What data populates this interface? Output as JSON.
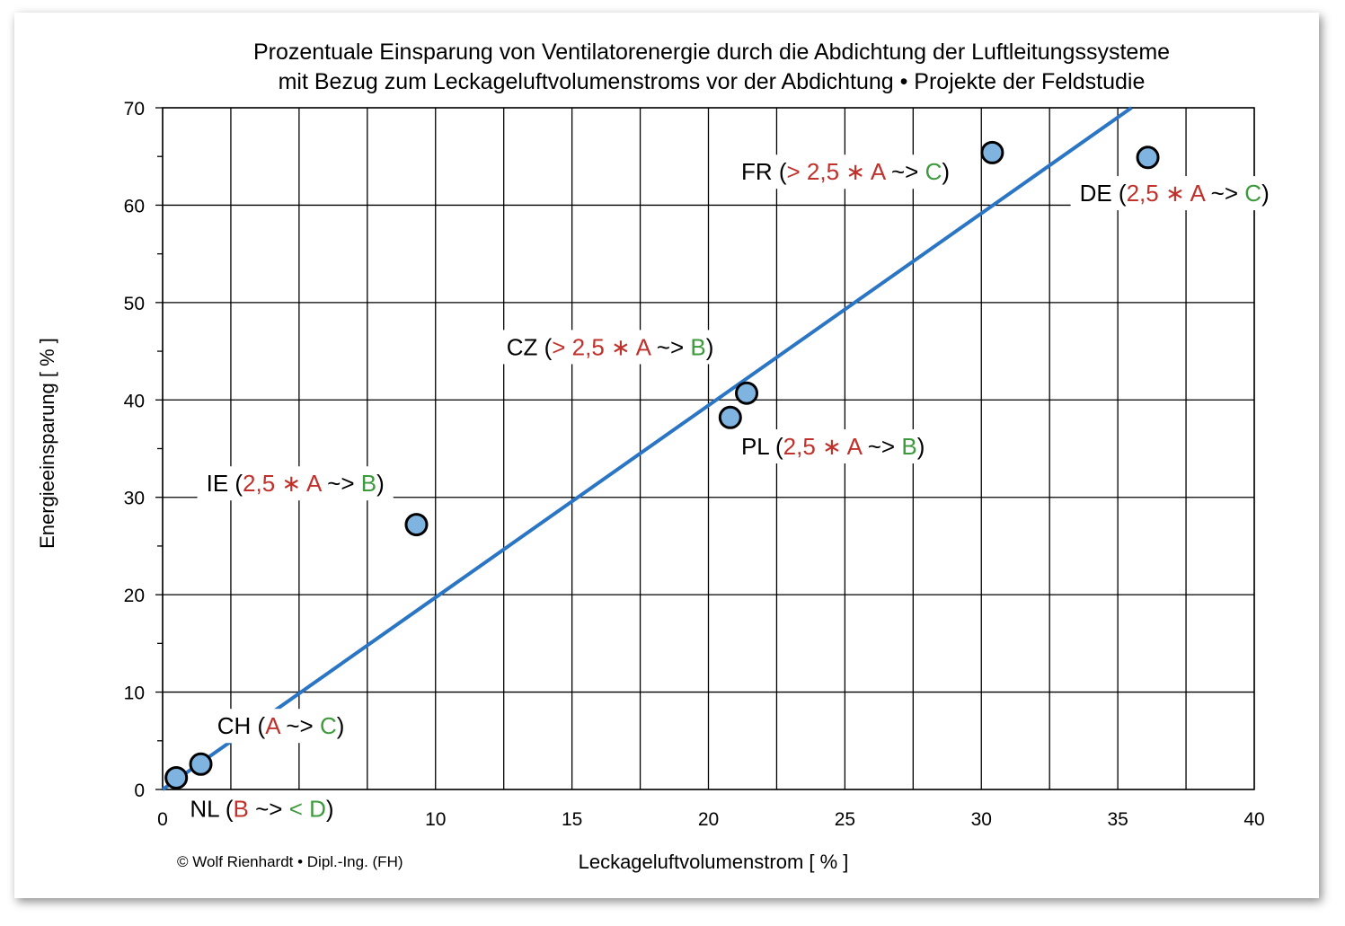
{
  "chart_data": {
    "type": "scatter",
    "title_lines": [
      "Prozentuale Einsparung von Ventilatorenergie durch die Abdichtung der Luftleitungssysteme",
      "mit Bezug zum Leckageluftvolumenstroms vor der Abdichtung • Projekte der Feldstudie"
    ],
    "xlabel": "Leckageluftvolumenstrom [ % ]",
    "ylabel": "Energieeinsparung [ % ]",
    "xlim": [
      0,
      40
    ],
    "ylim": [
      0,
      70
    ],
    "x_ticks": [
      0,
      5,
      10,
      15,
      20,
      25,
      30,
      35,
      40
    ],
    "y_ticks": [
      0,
      10,
      20,
      30,
      40,
      50,
      60,
      70
    ],
    "x_major_grid_step": 5,
    "x_minor_grid_step": 2.5,
    "y_major_grid_step": 10,
    "grid": true,
    "copyright": "© Wolf Rienhardt • Dipl.-Ing. (FH)",
    "colors": {
      "point_fill": "#7fb3e0",
      "point_stroke": "#000000",
      "trendline": "#2a75c4",
      "red_text": "#c0312b",
      "green_text": "#3c9a3c",
      "black_text": "#000000"
    },
    "trendline": {
      "from": [
        0,
        0
      ],
      "to": [
        35.5,
        70
      ]
    },
    "points": [
      {
        "x": 0.5,
        "y": 1.2
      },
      {
        "x": 1.4,
        "y": 2.6
      },
      {
        "x": 9.3,
        "y": 27.2
      },
      {
        "x": 20.8,
        "y": 38.2
      },
      {
        "x": 21.4,
        "y": 40.7
      },
      {
        "x": 30.4,
        "y": 65.4
      },
      {
        "x": 36.1,
        "y": 64.9
      }
    ],
    "annotations": [
      {
        "id": "NL",
        "x": 1.0,
        "y": -2.8,
        "parts": [
          {
            "t": "NL (",
            "c": "black_text"
          },
          {
            "t": "B",
            "c": "red_text"
          },
          {
            "t": " ~> ",
            "c": "black_text"
          },
          {
            "t": "< D",
            "c": "green_text"
          },
          {
            "t": ")",
            "c": "black_text"
          }
        ]
      },
      {
        "id": "CH",
        "x": 2.0,
        "y": 5.7,
        "parts": [
          {
            "t": "CH (",
            "c": "black_text"
          },
          {
            "t": "A",
            "c": "red_text"
          },
          {
            "t": " ~> ",
            "c": "black_text"
          },
          {
            "t": "C",
            "c": "green_text"
          },
          {
            "t": ")",
            "c": "black_text"
          }
        ]
      },
      {
        "id": "IE",
        "x": 1.6,
        "y": 30.6,
        "parts": [
          {
            "t": "IE (",
            "c": "black_text"
          },
          {
            "t": "2,5 ∗ A",
            "c": "red_text"
          },
          {
            "t": " ~> ",
            "c": "black_text"
          },
          {
            "t": "B",
            "c": "green_text"
          },
          {
            "t": ")",
            "c": "black_text"
          }
        ]
      },
      {
        "id": "CZ",
        "x": 12.6,
        "y": 44.6,
        "parts": [
          {
            "t": "CZ (",
            "c": "black_text"
          },
          {
            "t": "> 2,5 ∗ A",
            "c": "red_text"
          },
          {
            "t": " ~> ",
            "c": "black_text"
          },
          {
            "t": "B",
            "c": "green_text"
          },
          {
            "t": ")",
            "c": "black_text"
          }
        ]
      },
      {
        "id": "PL",
        "x": 21.2,
        "y": 34.4,
        "parts": [
          {
            "t": "PL (",
            "c": "black_text"
          },
          {
            "t": "2,5 ∗ A",
            "c": "red_text"
          },
          {
            "t": " ~> ",
            "c": "black_text"
          },
          {
            "t": "B",
            "c": "green_text"
          },
          {
            "t": ")",
            "c": "black_text"
          }
        ]
      },
      {
        "id": "FR",
        "x": 21.2,
        "y": 62.6,
        "parts": [
          {
            "t": "FR (",
            "c": "black_text"
          },
          {
            "t": "> 2,5 ∗ A",
            "c": "red_text"
          },
          {
            "t": " ~> ",
            "c": "black_text"
          },
          {
            "t": "C",
            "c": "green_text"
          },
          {
            "t": ")",
            "c": "black_text"
          }
        ]
      },
      {
        "id": "DE",
        "x": 33.6,
        "y": 60.4,
        "parts": [
          {
            "t": "DE (",
            "c": "black_text"
          },
          {
            "t": "2,5 ∗ A",
            "c": "red_text"
          },
          {
            "t": " ~> ",
            "c": "black_text"
          },
          {
            "t": "C",
            "c": "green_text"
          },
          {
            "t": ")",
            "c": "black_text"
          }
        ]
      }
    ]
  }
}
